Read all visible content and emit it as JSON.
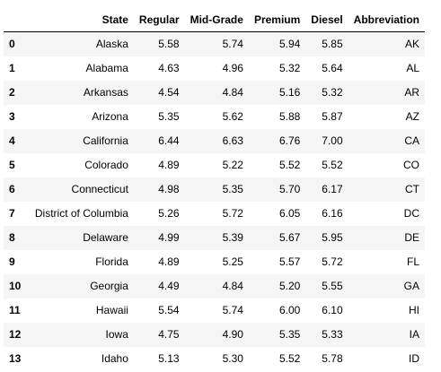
{
  "table": {
    "columns": [
      "",
      "State",
      "Regular",
      "Mid-Grade",
      "Premium",
      "Diesel",
      "Abbreviation"
    ],
    "rows": [
      [
        "0",
        "Alaska",
        "5.58",
        "5.74",
        "5.94",
        "5.85",
        "AK"
      ],
      [
        "1",
        "Alabama",
        "4.63",
        "4.96",
        "5.32",
        "5.64",
        "AL"
      ],
      [
        "2",
        "Arkansas",
        "4.54",
        "4.84",
        "5.16",
        "5.32",
        "AR"
      ],
      [
        "3",
        "Arizona",
        "5.35",
        "5.62",
        "5.88",
        "5.87",
        "AZ"
      ],
      [
        "4",
        "California",
        "6.44",
        "6.63",
        "6.76",
        "7.00",
        "CA"
      ],
      [
        "5",
        "Colorado",
        "4.89",
        "5.22",
        "5.52",
        "5.52",
        "CO"
      ],
      [
        "6",
        "Connecticut",
        "4.98",
        "5.35",
        "5.70",
        "6.17",
        "CT"
      ],
      [
        "7",
        "District of Columbia",
        "5.26",
        "5.72",
        "6.05",
        "6.16",
        "DC"
      ],
      [
        "8",
        "Delaware",
        "4.99",
        "5.39",
        "5.67",
        "5.95",
        "DE"
      ],
      [
        "9",
        "Florida",
        "4.89",
        "5.25",
        "5.57",
        "5.72",
        "FL"
      ],
      [
        "10",
        "Georgia",
        "4.49",
        "4.84",
        "5.20",
        "5.55",
        "GA"
      ],
      [
        "11",
        "Hawaii",
        "5.54",
        "5.74",
        "6.00",
        "6.10",
        "HI"
      ],
      [
        "12",
        "Iowa",
        "4.75",
        "4.90",
        "5.35",
        "5.33",
        "IA"
      ],
      [
        "13",
        "Idaho",
        "5.13",
        "5.30",
        "5.52",
        "5.78",
        "ID"
      ]
    ]
  }
}
